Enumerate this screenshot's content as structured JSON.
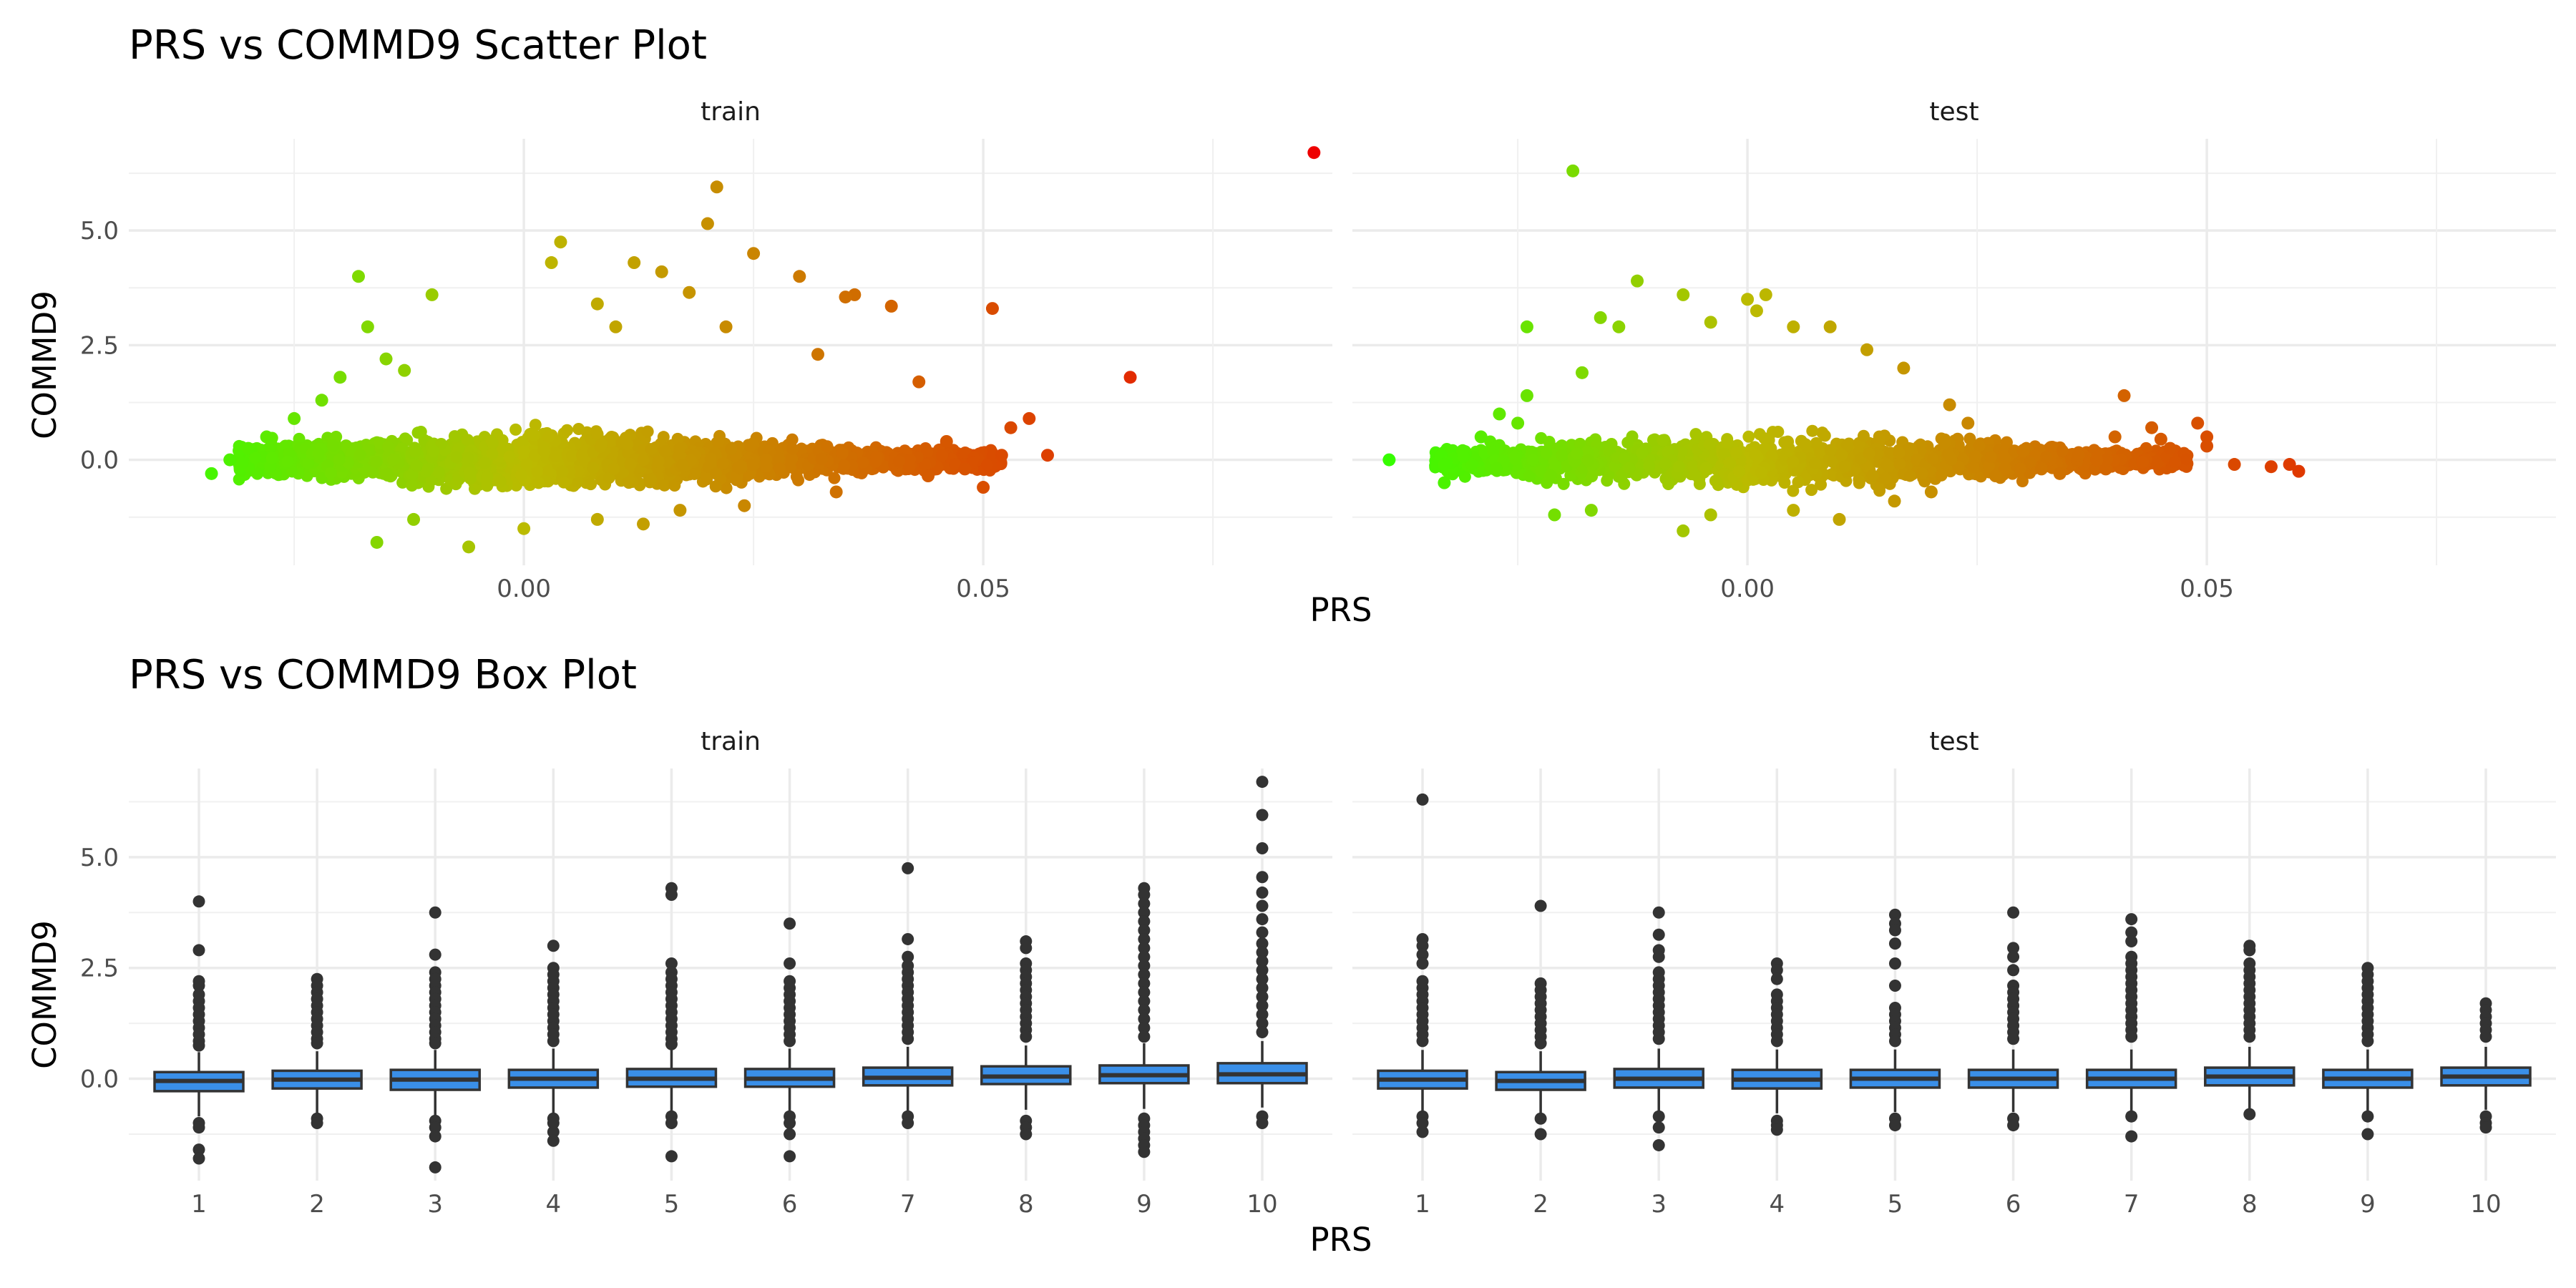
{
  "chart_data": [
    {
      "type": "scatter",
      "title": "PRS vs COMMD9 Scatter Plot",
      "xlabel": "PRS",
      "ylabel": "COMMD9",
      "panels": [
        "train",
        "test"
      ],
      "x_ticks": [
        "0.00",
        "0.05"
      ],
      "y_ticks": [
        "0.0",
        "2.5",
        "5.0"
      ],
      "xlim": [
        -0.043,
        0.088
      ],
      "ylim": [
        -2.3,
        7.0
      ],
      "color_scale": {
        "low": "#33ff00",
        "mid": "#bbbb00",
        "high": "#ee0000"
      },
      "grid": true,
      "legend": "none",
      "series": [
        {
          "name": "train",
          "points": [
            [
              0.086,
              6.7
            ],
            [
              0.066,
              1.8
            ],
            [
              0.051,
              3.3
            ],
            [
              0.021,
              5.95
            ],
            [
              0.02,
              5.15
            ],
            [
              0.025,
              4.5
            ],
            [
              0.004,
              4.75
            ],
            [
              0.012,
              4.3
            ],
            [
              0.003,
              4.3
            ],
            [
              0.015,
              4.1
            ],
            [
              0.03,
              4.0
            ],
            [
              0.036,
              3.6
            ],
            [
              0.04,
              3.35
            ],
            [
              0.035,
              3.55
            ],
            [
              -0.018,
              4.0
            ],
            [
              0.018,
              3.65
            ],
            [
              -0.01,
              3.6
            ],
            [
              0.008,
              3.4
            ],
            [
              -0.017,
              2.9
            ],
            [
              0.01,
              2.9
            ],
            [
              0.022,
              2.9
            ],
            [
              0.032,
              2.3
            ],
            [
              0.043,
              1.7
            ],
            [
              0.055,
              0.9
            ],
            [
              0.053,
              0.7
            ],
            [
              0.057,
              0.1
            ],
            [
              0.052,
              0.1
            ],
            [
              0.048,
              -0.2
            ],
            [
              0.05,
              -0.6
            ],
            [
              0.044,
              -0.35
            ],
            [
              0.046,
              0.4
            ],
            [
              -0.034,
              -0.3
            ],
            [
              -0.032,
              0.0
            ],
            [
              -0.031,
              0.2
            ],
            [
              -0.03,
              0.25
            ],
            [
              -0.028,
              0.5
            ],
            [
              -0.025,
              0.9
            ],
            [
              -0.022,
              1.3
            ],
            [
              -0.02,
              1.8
            ],
            [
              -0.015,
              2.2
            ],
            [
              -0.013,
              1.95
            ],
            [
              -0.016,
              -1.8
            ],
            [
              -0.012,
              -1.3
            ],
            [
              -0.006,
              -1.9
            ],
            [
              0.0,
              -1.5
            ],
            [
              0.008,
              -1.3
            ],
            [
              0.013,
              -1.4
            ],
            [
              0.017,
              -1.1
            ],
            [
              0.024,
              -1.0
            ],
            [
              0.034,
              -0.7
            ]
          ]
        },
        {
          "name": "test",
          "points": [
            [
              -0.019,
              6.3
            ],
            [
              0.06,
              -0.25
            ],
            [
              0.059,
              -0.1
            ],
            [
              0.057,
              -0.15
            ],
            [
              0.053,
              -0.1
            ],
            [
              0.05,
              0.3
            ],
            [
              0.05,
              0.5
            ],
            [
              0.049,
              0.8
            ],
            [
              0.046,
              0.25
            ],
            [
              0.045,
              0.45
            ],
            [
              0.044,
              0.7
            ],
            [
              0.043,
              -0.05
            ],
            [
              0.041,
              1.4
            ],
            [
              0.04,
              0.5
            ],
            [
              0.038,
              0.0
            ],
            [
              0.039,
              -0.2
            ],
            [
              0.036,
              0.1
            ],
            [
              0.034,
              -0.3
            ],
            [
              0.032,
              -0.2
            ],
            [
              0.03,
              0.2
            ],
            [
              0.028,
              -0.2
            ],
            [
              0.027,
              -0.35
            ],
            [
              -0.039,
              0.0
            ],
            [
              -0.033,
              -0.1
            ],
            [
              -0.033,
              -0.5
            ],
            [
              -0.031,
              0.2
            ],
            [
              -0.029,
              0.5
            ],
            [
              -0.027,
              1.0
            ],
            [
              -0.025,
              0.8
            ],
            [
              -0.024,
              1.4
            ],
            [
              -0.024,
              2.9
            ],
            [
              -0.018,
              1.9
            ],
            [
              -0.016,
              3.1
            ],
            [
              -0.014,
              2.9
            ],
            [
              -0.012,
              3.9
            ],
            [
              -0.007,
              3.6
            ],
            [
              -0.004,
              3.0
            ],
            [
              0.0,
              3.5
            ],
            [
              0.002,
              3.6
            ],
            [
              0.001,
              3.25
            ],
            [
              0.005,
              2.9
            ],
            [
              0.009,
              2.9
            ],
            [
              0.013,
              2.4
            ],
            [
              0.017,
              2.0
            ],
            [
              0.022,
              1.2
            ],
            [
              0.024,
              0.8
            ],
            [
              -0.021,
              -1.2
            ],
            [
              -0.017,
              -1.1
            ],
            [
              -0.007,
              -1.55
            ],
            [
              -0.004,
              -1.2
            ],
            [
              0.005,
              -1.1
            ],
            [
              0.01,
              -1.3
            ],
            [
              0.016,
              -0.9
            ],
            [
              0.02,
              -0.7
            ]
          ]
        }
      ]
    },
    {
      "type": "box",
      "title": "PRS vs COMMD9 Box Plot",
      "xlabel": "PRS",
      "ylabel": "COMMD9",
      "categories": [
        "1",
        "2",
        "3",
        "4",
        "5",
        "6",
        "7",
        "8",
        "9",
        "10"
      ],
      "y_ticks": [
        "0.0",
        "2.5",
        "5.0"
      ],
      "ylim": [
        -2.3,
        7.0
      ],
      "box_fill": "#3a8fe8",
      "grid": true,
      "legend": "none",
      "series": [
        {
          "name": "train",
          "boxes": [
            {
              "q1": -0.28,
              "med": -0.05,
              "q3": 0.15,
              "lo": -0.85,
              "hi": 0.6,
              "outliers": [
                4.0,
                2.9,
                2.2,
                2.1,
                1.9,
                1.75,
                1.6,
                1.45,
                1.3,
                1.15,
                1.0,
                0.85,
                0.75,
                -1.0,
                -1.1,
                -1.6,
                -1.8
              ]
            },
            {
              "q1": -0.22,
              "med": -0.02,
              "q3": 0.18,
              "lo": -0.8,
              "hi": 0.62,
              "outliers": [
                2.25,
                2.1,
                1.95,
                1.8,
                1.65,
                1.5,
                1.35,
                1.2,
                1.05,
                0.9,
                0.8,
                -0.9,
                -1.0
              ]
            },
            {
              "q1": -0.25,
              "med": -0.02,
              "q3": 0.2,
              "lo": -0.82,
              "hi": 0.65,
              "outliers": [
                3.75,
                2.8,
                2.4,
                2.25,
                2.1,
                1.95,
                1.8,
                1.65,
                1.5,
                1.35,
                1.2,
                1.05,
                0.9,
                0.8,
                -0.95,
                -1.1,
                -1.3,
                -2.0
              ]
            },
            {
              "q1": -0.2,
              "med": 0.0,
              "q3": 0.2,
              "lo": -0.78,
              "hi": 0.68,
              "outliers": [
                3.0,
                2.5,
                2.35,
                2.2,
                2.05,
                1.9,
                1.75,
                1.6,
                1.45,
                1.3,
                1.15,
                1.0,
                0.85,
                -0.9,
                -1.0,
                -1.2,
                -1.4
              ]
            },
            {
              "q1": -0.18,
              "med": 0.0,
              "q3": 0.22,
              "lo": -0.75,
              "hi": 0.68,
              "outliers": [
                4.3,
                4.15,
                2.6,
                2.4,
                2.25,
                2.1,
                1.95,
                1.8,
                1.65,
                1.5,
                1.35,
                1.2,
                1.05,
                0.9,
                0.78,
                -0.85,
                -1.0,
                -1.75
              ]
            },
            {
              "q1": -0.18,
              "med": 0.0,
              "q3": 0.22,
              "lo": -0.75,
              "hi": 0.68,
              "outliers": [
                3.5,
                2.6,
                2.2,
                2.05,
                1.9,
                1.75,
                1.6,
                1.45,
                1.3,
                1.15,
                1.0,
                0.85,
                -0.85,
                -1.0,
                -1.25,
                -1.75
              ]
            },
            {
              "q1": -0.15,
              "med": 0.02,
              "q3": 0.25,
              "lo": -0.72,
              "hi": 0.72,
              "outliers": [
                4.75,
                3.15,
                2.75,
                2.55,
                2.4,
                2.25,
                2.1,
                1.95,
                1.8,
                1.65,
                1.5,
                1.35,
                1.2,
                1.05,
                0.9,
                -0.85,
                -1.0
              ]
            },
            {
              "q1": -0.12,
              "med": 0.05,
              "q3": 0.28,
              "lo": -0.7,
              "hi": 0.75,
              "outliers": [
                3.1,
                2.95,
                2.6,
                2.45,
                2.3,
                2.15,
                2.0,
                1.85,
                1.7,
                1.55,
                1.4,
                1.25,
                1.1,
                0.95,
                -0.95,
                -1.1,
                -1.25
              ]
            },
            {
              "q1": -0.1,
              "med": 0.08,
              "q3": 0.3,
              "lo": -0.68,
              "hi": 0.8,
              "outliers": [
                4.3,
                4.15,
                3.95,
                3.75,
                3.55,
                3.35,
                3.15,
                2.95,
                2.75,
                2.55,
                2.35,
                2.15,
                1.95,
                1.75,
                1.55,
                1.35,
                1.15,
                0.95,
                -0.9,
                -1.05,
                -1.2,
                -1.35,
                -1.5,
                -1.65
              ]
            },
            {
              "q1": -0.1,
              "med": 0.1,
              "q3": 0.35,
              "lo": -0.65,
              "hi": 0.85,
              "outliers": [
                6.7,
                5.95,
                5.2,
                4.55,
                4.2,
                3.9,
                3.6,
                3.3,
                3.05,
                2.85,
                2.65,
                2.45,
                2.25,
                2.05,
                1.85,
                1.65,
                1.45,
                1.25,
                1.05,
                -0.85,
                -1.0
              ]
            }
          ]
        },
        {
          "name": "test",
          "boxes": [
            {
              "q1": -0.22,
              "med": -0.02,
              "q3": 0.18,
              "lo": -0.78,
              "hi": 0.65,
              "outliers": [
                6.3,
                3.15,
                3.0,
                2.8,
                2.6,
                2.2,
                2.05,
                1.9,
                1.75,
                1.6,
                1.45,
                1.3,
                1.15,
                1.0,
                0.85,
                -0.85,
                -1.0,
                -1.2
              ]
            },
            {
              "q1": -0.25,
              "med": -0.05,
              "q3": 0.15,
              "lo": -0.8,
              "hi": 0.62,
              "outliers": [
                3.9,
                2.15,
                2.0,
                1.85,
                1.7,
                1.55,
                1.4,
                1.25,
                1.1,
                0.95,
                0.8,
                -0.9,
                -1.25
              ]
            },
            {
              "q1": -0.2,
              "med": 0.0,
              "q3": 0.22,
              "lo": -0.75,
              "hi": 0.68,
              "outliers": [
                3.75,
                3.25,
                2.9,
                2.75,
                2.4,
                2.25,
                2.1,
                1.95,
                1.8,
                1.65,
                1.5,
                1.35,
                1.2,
                1.05,
                0.9,
                -0.85,
                -1.1,
                -1.5
              ]
            },
            {
              "q1": -0.22,
              "med": -0.02,
              "q3": 0.2,
              "lo": -0.78,
              "hi": 0.66,
              "outliers": [
                2.6,
                2.45,
                2.25,
                1.9,
                1.75,
                1.6,
                1.45,
                1.3,
                1.15,
                1.0,
                0.85,
                -0.95,
                -1.05,
                -1.15
              ]
            },
            {
              "q1": -0.2,
              "med": 0.0,
              "q3": 0.2,
              "lo": -0.75,
              "hi": 0.66,
              "outliers": [
                3.7,
                3.5,
                3.35,
                3.05,
                2.6,
                2.1,
                1.6,
                1.45,
                1.3,
                1.15,
                1.0,
                0.85,
                -0.9,
                -1.05
              ]
            },
            {
              "q1": -0.2,
              "med": 0.0,
              "q3": 0.2,
              "lo": -0.75,
              "hi": 0.66,
              "outliers": [
                3.75,
                2.95,
                2.75,
                2.45,
                2.1,
                1.95,
                1.8,
                1.65,
                1.5,
                1.35,
                1.2,
                1.05,
                0.9,
                -0.9,
                -1.05
              ]
            },
            {
              "q1": -0.2,
              "med": 0.0,
              "q3": 0.2,
              "lo": -0.75,
              "hi": 0.66,
              "outliers": [
                3.6,
                3.3,
                3.1,
                2.75,
                2.6,
                2.45,
                2.3,
                2.15,
                2.0,
                1.85,
                1.7,
                1.55,
                1.4,
                1.25,
                1.1,
                0.95,
                -0.85,
                -1.3
              ]
            },
            {
              "q1": -0.15,
              "med": 0.05,
              "q3": 0.25,
              "lo": -0.7,
              "hi": 0.72,
              "outliers": [
                3.0,
                2.9,
                2.6,
                2.45,
                2.3,
                2.15,
                2.0,
                1.85,
                1.7,
                1.55,
                1.4,
                1.25,
                1.1,
                0.95,
                -0.8
              ]
            },
            {
              "q1": -0.2,
              "med": 0.0,
              "q3": 0.2,
              "lo": -0.75,
              "hi": 0.66,
              "outliers": [
                2.5,
                2.35,
                2.2,
                2.05,
                1.9,
                1.75,
                1.6,
                1.45,
                1.3,
                1.15,
                1.0,
                0.85,
                -0.85,
                -1.25
              ]
            },
            {
              "q1": -0.15,
              "med": 0.05,
              "q3": 0.25,
              "lo": -0.7,
              "hi": 0.72,
              "outliers": [
                1.7,
                1.55,
                1.4,
                1.25,
                1.1,
                0.95,
                -0.85,
                -1.0,
                -1.1
              ]
            }
          ]
        }
      ]
    }
  ]
}
